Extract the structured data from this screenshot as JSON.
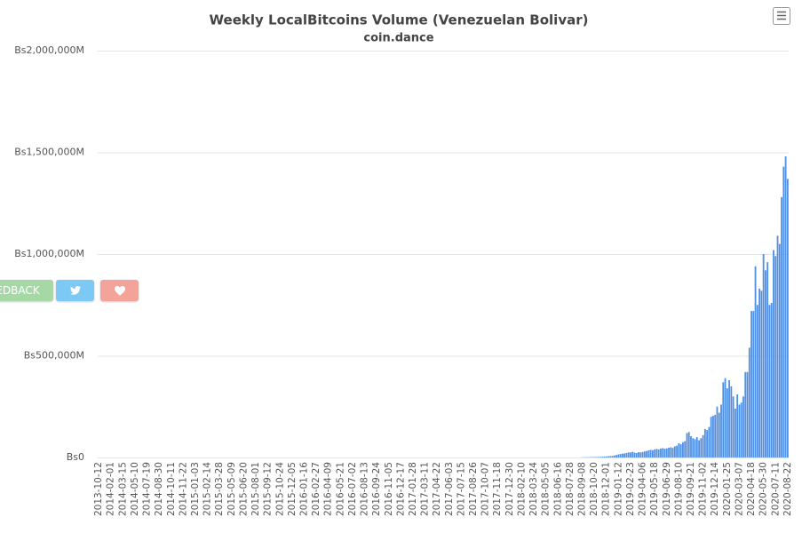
{
  "chart_data": {
    "type": "bar",
    "title": "Weekly LocalBitcoins Volume (Venezuelan Bolivar)",
    "subtitle": "coin.dance",
    "color": "#4f8fe6",
    "grid": true,
    "ylim": [
      0,
      2000000
    ],
    "yticks": [
      {
        "value": 0,
        "label": "Bs0"
      },
      {
        "value": 500000,
        "label": "Bs500,000M"
      },
      {
        "value": 1000000,
        "label": "Bs1,000,000M"
      },
      {
        "value": 1500000,
        "label": "Bs1,500,000M"
      },
      {
        "value": 2000000,
        "label": "Bs2,000,000M"
      }
    ],
    "categories": [
      "2013-10-12",
      null,
      null,
      null,
      null,
      null,
      "2014-02-01",
      null,
      null,
      null,
      null,
      null,
      "2014-03-15",
      null,
      null,
      null,
      null,
      null,
      "2014-05-10",
      null,
      null,
      null,
      null,
      null,
      "2014-07-19",
      null,
      null,
      null,
      null,
      null,
      "2014-08-30",
      null,
      null,
      null,
      null,
      null,
      "2014-10-11",
      null,
      null,
      null,
      null,
      null,
      "2014-11-22",
      null,
      null,
      null,
      null,
      null,
      "2015-01-03",
      null,
      null,
      null,
      null,
      null,
      "2015-02-14",
      null,
      null,
      null,
      null,
      null,
      "2015-03-28",
      null,
      null,
      null,
      null,
      null,
      "2015-05-09",
      null,
      null,
      null,
      null,
      null,
      "2015-06-20",
      null,
      null,
      null,
      null,
      null,
      "2015-08-01",
      null,
      null,
      null,
      null,
      null,
      "2015-09-12",
      null,
      null,
      null,
      null,
      null,
      "2015-10-24",
      null,
      null,
      null,
      null,
      null,
      "2015-12-05",
      null,
      null,
      null,
      null,
      null,
      "2016-01-16",
      null,
      null,
      null,
      null,
      null,
      "2016-02-27",
      null,
      null,
      null,
      null,
      null,
      "2016-04-09",
      null,
      null,
      null,
      null,
      null,
      "2016-05-21",
      null,
      null,
      null,
      null,
      null,
      "2016-07-02",
      null,
      null,
      null,
      null,
      null,
      "2016-08-13",
      null,
      null,
      null,
      null,
      null,
      "2016-09-24",
      null,
      null,
      null,
      null,
      null,
      "2016-11-05",
      null,
      null,
      null,
      null,
      null,
      "2016-12-17",
      null,
      null,
      null,
      null,
      null,
      "2017-01-28",
      null,
      null,
      null,
      null,
      null,
      "2017-03-11",
      null,
      null,
      null,
      null,
      null,
      "2017-04-22",
      null,
      null,
      null,
      null,
      null,
      "2017-06-03",
      null,
      null,
      null,
      null,
      null,
      "2017-07-15",
      null,
      null,
      null,
      null,
      null,
      "2017-08-26",
      null,
      null,
      null,
      null,
      null,
      "2017-10-07",
      null,
      null,
      null,
      null,
      null,
      "2017-11-18",
      null,
      null,
      null,
      null,
      null,
      "2017-12-30",
      null,
      null,
      null,
      null,
      null,
      "2018-02-10",
      null,
      null,
      null,
      null,
      null,
      "2018-03-24",
      null,
      null,
      null,
      null,
      null,
      "2018-05-05",
      null,
      null,
      null,
      null,
      null,
      "2018-06-16",
      null,
      null,
      null,
      null,
      null,
      "2018-07-28",
      null,
      null,
      null,
      null,
      null,
      "2018-09-08",
      null,
      null,
      null,
      null,
      null,
      "2018-10-20",
      null,
      null,
      null,
      null,
      null,
      "2018-12-01",
      null,
      null,
      null,
      null,
      null,
      "2019-01-12",
      null,
      null,
      null,
      null,
      null,
      "2019-02-23",
      null,
      null,
      null,
      null,
      null,
      "2019-04-06",
      null,
      null,
      null,
      null,
      null,
      "2019-05-18",
      null,
      null,
      null,
      null,
      null,
      "2019-06-29",
      null,
      null,
      null,
      null,
      null,
      "2019-08-10",
      null,
      null,
      null,
      null,
      null,
      "2019-09-21",
      null,
      null,
      null,
      null,
      null,
      "2019-11-02",
      null,
      null,
      null,
      null,
      null,
      "2019-12-14",
      null,
      null,
      null,
      null,
      null,
      "2020-01-25",
      null,
      null,
      null,
      null,
      null,
      "2020-03-07",
      null,
      null,
      null,
      null,
      null,
      "2020-04-18",
      null,
      null,
      null,
      null,
      null,
      "2020-05-30",
      null,
      null,
      null,
      null,
      null,
      "2020-07-11",
      null,
      null,
      null,
      null,
      null,
      "2020-08-22"
    ],
    "values": [
      0,
      0,
      0,
      0,
      0,
      0,
      0,
      0,
      0,
      0,
      0,
      0,
      0,
      0,
      0,
      0,
      0,
      0,
      0,
      0,
      0,
      0,
      0,
      0,
      0,
      0,
      0,
      0,
      0,
      0,
      0,
      0,
      0,
      0,
      0,
      0,
      0,
      0,
      0,
      0,
      0,
      0,
      0,
      0,
      0,
      0,
      0,
      0,
      0,
      0,
      0,
      0,
      0,
      0,
      0,
      0,
      0,
      0,
      0,
      0,
      0,
      0,
      0,
      0,
      0,
      0,
      0,
      0,
      0,
      0,
      0,
      0,
      0,
      0,
      0,
      0,
      0,
      0,
      0,
      0,
      0,
      0,
      0,
      0,
      0,
      0,
      0,
      0,
      0,
      0,
      0,
      0,
      0,
      0,
      0,
      0,
      0,
      0,
      0,
      0,
      0,
      0,
      0,
      0,
      0,
      0,
      0,
      0,
      0,
      0,
      0,
      0,
      0,
      0,
      0,
      0,
      0,
      0,
      0,
      0,
      0,
      0,
      0,
      0,
      0,
      0,
      0,
      0,
      0,
      0,
      0,
      0,
      0,
      0,
      0,
      0,
      0,
      0,
      0,
      0,
      0,
      0,
      0,
      0,
      0,
      0,
      0,
      0,
      0,
      0,
      0,
      0,
      0,
      0,
      0,
      0,
      0,
      0,
      0,
      0,
      0,
      0,
      0,
      0,
      0,
      0,
      0,
      0,
      0,
      0,
      0,
      0,
      0,
      0,
      0,
      0,
      0,
      0,
      0,
      0,
      0,
      0,
      0,
      0,
      0,
      0,
      0,
      0,
      0,
      0,
      0,
      0,
      0,
      0,
      0,
      0,
      0,
      0,
      0,
      0,
      0,
      0,
      0,
      0,
      0,
      0,
      0,
      0,
      0,
      0,
      0,
      0,
      0,
      0,
      0,
      0,
      0,
      0,
      0,
      0,
      0,
      0,
      0,
      0,
      0,
      0,
      0,
      0,
      0,
      0,
      0,
      0,
      0,
      0,
      0,
      0,
      0,
      0,
      0,
      0,
      1000,
      1000,
      1500,
      1500,
      2000,
      2000,
      2000,
      2500,
      3000,
      3000,
      4000,
      4000,
      5000,
      6000,
      7000,
      8000,
      10000,
      12000,
      15000,
      17000,
      19000,
      20000,
      22000,
      25000,
      25000,
      28000,
      24000,
      22000,
      26000,
      25000,
      27000,
      30000,
      32000,
      35000,
      38000,
      36000,
      40000,
      42000,
      40000,
      44000,
      46000,
      43000,
      45000,
      48000,
      50000,
      47000,
      55000,
      58000,
      70000,
      65000,
      75000,
      80000,
      120000,
      125000,
      105000,
      95000,
      90000,
      100000,
      85000,
      95000,
      110000,
      140000,
      135000,
      150000,
      200000,
      205000,
      210000,
      250000,
      220000,
      260000,
      370000,
      390000,
      340000,
      380000,
      350000,
      300000,
      240000,
      310000,
      260000,
      270000,
      300000,
      420000,
      420000,
      540000,
      720000,
      720000,
      940000,
      750000,
      830000,
      820000,
      1000000,
      920000,
      960000,
      750000,
      760000,
      1020000,
      990000,
      1090000,
      1050000,
      1280000,
      1430000,
      1480000,
      1370000
    ]
  },
  "buttons": {
    "feedback": "EDBACK"
  }
}
